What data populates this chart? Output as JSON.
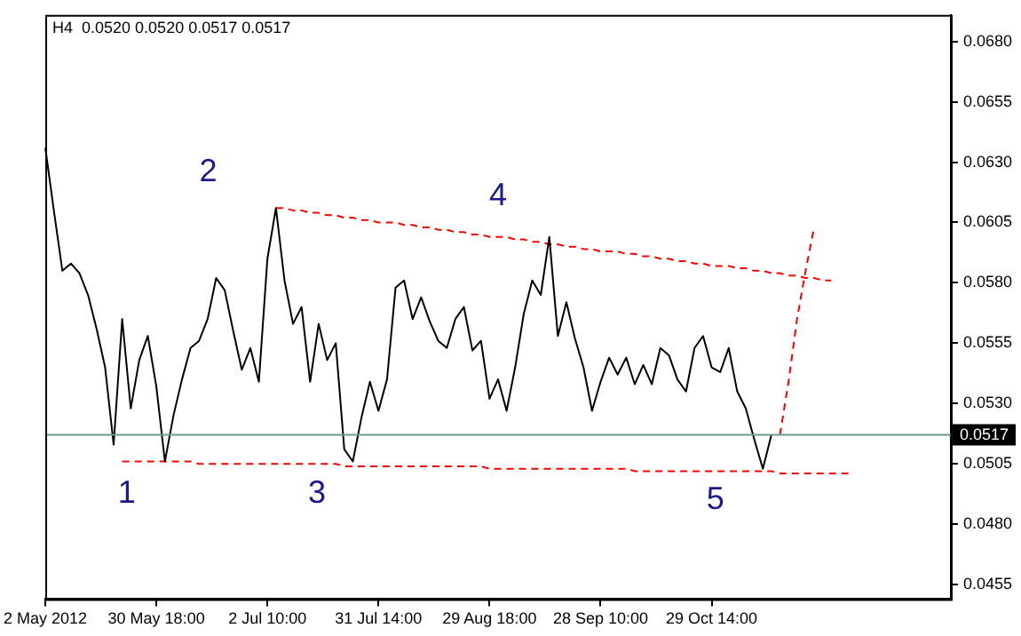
{
  "chart_data": {
    "type": "line",
    "title": "H4  0.0520 0.0520 0.0517 0.0517",
    "categories": [
      "2 May 2012",
      null,
      null,
      null,
      null,
      null,
      null,
      null,
      null,
      null,
      null,
      null,
      null,
      "30 May 18:00",
      null,
      null,
      null,
      null,
      null,
      null,
      null,
      null,
      null,
      null,
      null,
      null,
      "2 Jul 10:00",
      null,
      null,
      null,
      null,
      null,
      null,
      null,
      null,
      null,
      null,
      null,
      null,
      "31 Jul 14:00",
      null,
      null,
      null,
      null,
      null,
      null,
      null,
      null,
      null,
      null,
      null,
      null,
      "29 Aug 18:00",
      null,
      null,
      null,
      null,
      null,
      null,
      null,
      null,
      null,
      null,
      null,
      null,
      "28 Sep 10:00",
      null,
      null,
      null,
      null,
      null,
      null,
      null,
      null,
      null,
      null,
      null,
      null,
      "29 Oct 14:00",
      null,
      null,
      null,
      null,
      null,
      null,
      null,
      null,
      null,
      null,
      null,
      null,
      null,
      null,
      null,
      null,
      null,
      null,
      null,
      null,
      null,
      null,
      null,
      null,
      null,
      null,
      null,
      null
    ],
    "ylim": [
      0.0449,
      0.0691
    ],
    "yticks": [
      {
        "value": 0.068,
        "label": "0.0680"
      },
      {
        "value": 0.0655,
        "label": "0.0655"
      },
      {
        "value": 0.063,
        "label": "0.0630"
      },
      {
        "value": 0.0605,
        "label": "0.0605"
      },
      {
        "value": 0.058,
        "label": "0.0580"
      },
      {
        "value": 0.0555,
        "label": "0.0555"
      },
      {
        "value": 0.053,
        "label": "0.0530"
      },
      {
        "value": 0.0505,
        "label": "0.0505"
      },
      {
        "value": 0.048,
        "label": "0.0480"
      },
      {
        "value": 0.0455,
        "label": "0.0455"
      }
    ],
    "grid": false,
    "legend": false,
    "marker": "none",
    "series": [
      {
        "color": "#000000",
        "line_style": "solid",
        "values": [
          0.0636,
          0.061,
          0.0585,
          0.0588,
          0.0584,
          0.0575,
          0.0561,
          0.0545,
          0.0513,
          0.0565,
          0.0528,
          0.0548,
          0.0558,
          0.0537,
          0.0506,
          0.0525,
          0.054,
          0.0553,
          0.0556,
          0.0565,
          0.0582,
          0.0577,
          0.056,
          0.0544,
          0.0553,
          0.0539,
          0.059,
          0.0611,
          0.0581,
          0.0563,
          0.057,
          0.0539,
          0.0563,
          0.0548,
          0.0555,
          0.0511,
          0.0506,
          0.0524,
          0.0539,
          0.0527,
          0.054,
          0.0578,
          0.0581,
          0.0565,
          0.0574,
          0.0564,
          0.0556,
          0.0553,
          0.0565,
          0.057,
          0.0552,
          0.0556,
          0.0532,
          0.054,
          0.0527,
          0.0545,
          0.0567,
          0.0581,
          0.0575,
          0.0599,
          0.0558,
          0.0572,
          0.0557,
          0.0545,
          0.0527,
          0.0539,
          0.0549,
          0.0542,
          0.0549,
          0.0538,
          0.0546,
          0.0538,
          0.0553,
          0.055,
          0.054,
          0.0535,
          0.0553,
          0.0558,
          0.0545,
          0.0543,
          0.0553,
          0.0535,
          0.0528,
          0.0515,
          0.0503,
          0.0517,
          null,
          null,
          null,
          null,
          null,
          null,
          null,
          null,
          null,
          null,
          null,
          null,
          null,
          null,
          null,
          null,
          null,
          null,
          null,
          null,
          null
        ]
      },
      {
        "color": "#ff0000",
        "line_style": "dashed",
        "values": [
          null,
          null,
          null,
          null,
          null,
          null,
          null,
          null,
          null,
          null,
          null,
          null,
          null,
          null,
          null,
          null,
          null,
          null,
          null,
          null,
          null,
          null,
          null,
          null,
          null,
          null,
          null,
          0.0611,
          0.0611,
          0.061,
          0.061,
          0.0609,
          0.0609,
          0.0608,
          0.0608,
          0.0607,
          0.0607,
          0.0606,
          0.0606,
          0.0605,
          0.0605,
          0.0605,
          0.0604,
          0.0604,
          0.0603,
          0.0603,
          0.0602,
          0.0602,
          0.0601,
          0.0601,
          0.06,
          0.06,
          0.0599,
          0.0599,
          0.0599,
          0.0598,
          0.0598,
          0.0597,
          0.0597,
          0.0596,
          0.0596,
          0.0595,
          0.0595,
          0.0594,
          0.0594,
          0.0593,
          0.0593,
          0.0593,
          0.0592,
          0.0592,
          0.0591,
          0.0591,
          0.059,
          0.059,
          0.0589,
          0.0589,
          0.0588,
          0.0588,
          0.0587,
          0.0587,
          0.0587,
          0.0586,
          0.0586,
          0.0585,
          0.0585,
          0.0584,
          0.0584,
          0.0583,
          0.0583,
          0.0582,
          0.0582,
          0.0581,
          0.0581,
          null,
          null,
          null,
          null,
          null,
          null,
          null,
          null,
          null,
          null,
          null,
          null,
          null,
          null
        ]
      },
      {
        "color": "#ff0000",
        "line_style": "dashed",
        "values": [
          null,
          null,
          null,
          null,
          null,
          null,
          null,
          null,
          null,
          0.0506,
          0.0506,
          0.0506,
          0.0506,
          0.0506,
          0.0506,
          0.0506,
          0.0506,
          0.0506,
          0.0505,
          0.0505,
          0.0505,
          0.0505,
          0.0505,
          0.0505,
          0.0505,
          0.0505,
          0.0505,
          0.0505,
          0.0505,
          0.0505,
          0.0505,
          0.0505,
          0.0505,
          0.0505,
          0.0505,
          0.0504,
          0.0504,
          0.0504,
          0.0504,
          0.0504,
          0.0504,
          0.0504,
          0.0504,
          0.0504,
          0.0504,
          0.0504,
          0.0504,
          0.0504,
          0.0504,
          0.0504,
          0.0504,
          0.0504,
          0.0503,
          0.0503,
          0.0503,
          0.0503,
          0.0503,
          0.0503,
          0.0503,
          0.0503,
          0.0503,
          0.0503,
          0.0503,
          0.0503,
          0.0503,
          0.0503,
          0.0503,
          0.0503,
          0.0503,
          0.0502,
          0.0502,
          0.0502,
          0.0502,
          0.0502,
          0.0502,
          0.0502,
          0.0502,
          0.0502,
          0.0502,
          0.0502,
          0.0502,
          0.0502,
          0.0502,
          0.0502,
          0.0502,
          0.0502,
          0.0501,
          0.0501,
          0.0501,
          0.0501,
          0.0501,
          0.0501,
          0.0501,
          0.0501,
          0.0501,
          null,
          null,
          null,
          null,
          null,
          null,
          null,
          null,
          null,
          null,
          null,
          null
        ]
      },
      {
        "color": "#ff0000",
        "line_style": "dashed",
        "values": [
          null,
          null,
          null,
          null,
          null,
          null,
          null,
          null,
          null,
          null,
          null,
          null,
          null,
          null,
          null,
          null,
          null,
          null,
          null,
          null,
          null,
          null,
          null,
          null,
          null,
          null,
          null,
          null,
          null,
          null,
          null,
          null,
          null,
          null,
          null,
          null,
          null,
          null,
          null,
          null,
          null,
          null,
          null,
          null,
          null,
          null,
          null,
          null,
          null,
          null,
          null,
          null,
          null,
          null,
          null,
          null,
          null,
          null,
          null,
          null,
          null,
          null,
          null,
          null,
          null,
          null,
          null,
          null,
          null,
          null,
          null,
          null,
          null,
          null,
          null,
          null,
          null,
          null,
          null,
          null,
          null,
          null,
          null,
          null,
          null,
          null,
          0.0517,
          0.0539,
          0.0565,
          0.0585,
          0.0603,
          null,
          null,
          null,
          null,
          null,
          null,
          null,
          null,
          null,
          null,
          null,
          null,
          null,
          null,
          null,
          null
        ]
      }
    ],
    "ref_lines": [
      {
        "axis": "y",
        "value": 0.0517,
        "label": "0.0517",
        "color": "#6e9a90"
      }
    ],
    "annotations": [
      "1",
      "2",
      "3",
      "4",
      "5"
    ]
  }
}
